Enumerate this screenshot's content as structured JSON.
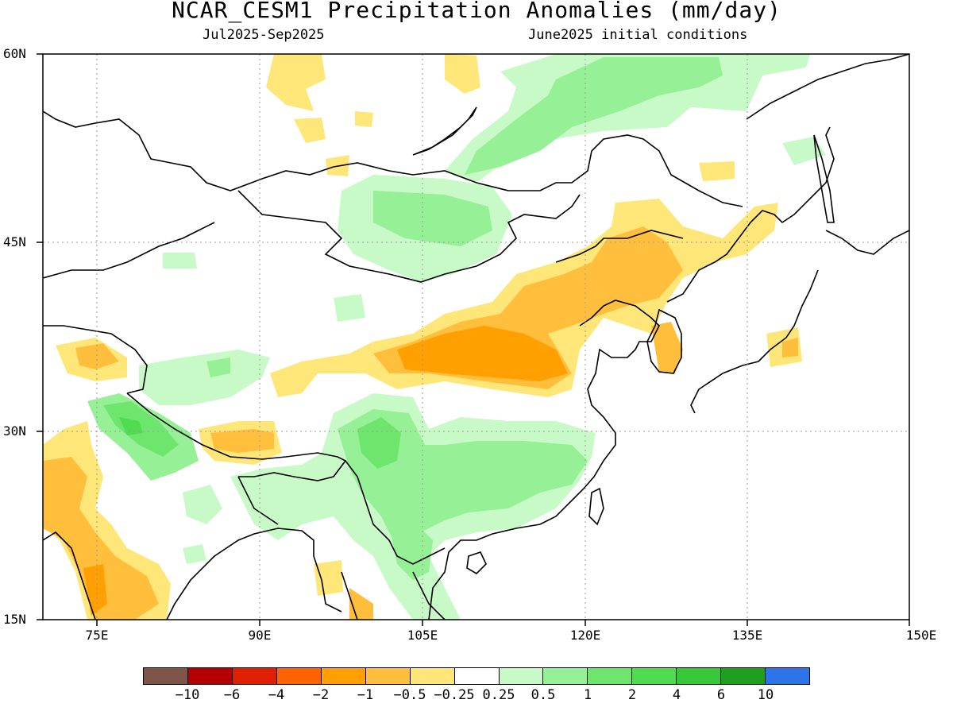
{
  "header": {
    "title": "NCAR_CESM1 Precipitation Anomalies (mm/day)",
    "period": "Jul2025-Sep2025",
    "init": "June2025 initial conditions"
  },
  "axes": {
    "lat_labels": [
      "60N",
      "45N",
      "30N",
      "15N"
    ],
    "lon_labels": [
      "75E",
      "90E",
      "105E",
      "120E",
      "135E",
      "150E"
    ],
    "lon_range": [
      70,
      150
    ],
    "lat_range": [
      15,
      60
    ],
    "gridlines": "dotted"
  },
  "colorbar": {
    "colors": [
      "#7f5548",
      "#b40000",
      "#e01e00",
      "#ff6400",
      "#ffa000",
      "#ffbe3c",
      "#ffe678",
      "#ffffff",
      "#c8fac8",
      "#96f096",
      "#6ee66e",
      "#50dc50",
      "#37c837",
      "#1ea01e",
      "#2c74e8"
    ],
    "labels": [
      "−10",
      "−6",
      "−4",
      "−2",
      "−1",
      "−0.5",
      "−0.25",
      "0.25",
      "0.5",
      "1",
      "2",
      "4",
      "6",
      "10"
    ]
  },
  "colors": {
    "dry_light": "#ffe678",
    "dry_medium": "#ffbe3c",
    "dry_strong": "#ffa000",
    "wet_light": "#c8fac8",
    "wet_medium": "#96f096",
    "wet_strong": "#6ee66e",
    "wet_max": "#50dc50"
  }
}
